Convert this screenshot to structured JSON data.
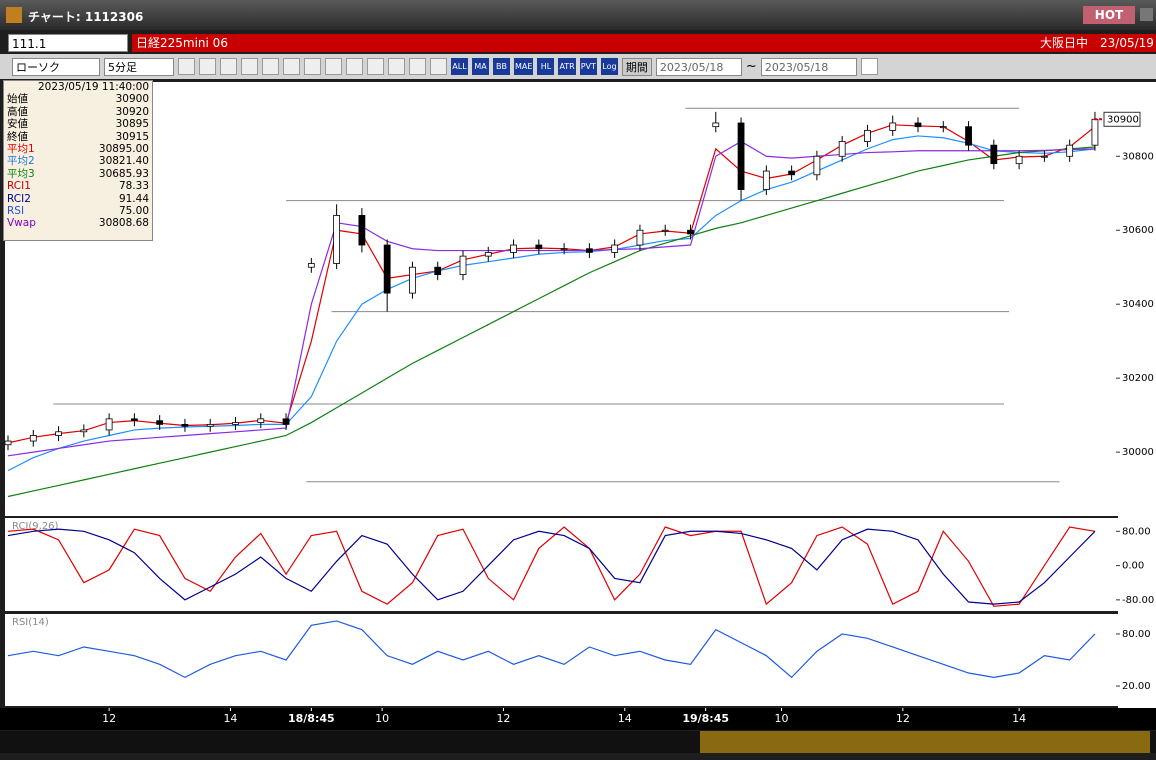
{
  "window": {
    "title": "チャート: 1112306",
    "badge": "HOT"
  },
  "toolbar": {
    "code": "111.1",
    "instrument": "日経225mini 06",
    "session": "大阪日中",
    "date": "23/05/19",
    "chart_kind": "ローソク",
    "interval": "5分足",
    "buttons": [
      "ALL",
      "MA",
      "BB",
      "MAE",
      "HL",
      "ATR",
      "PVT",
      "Log"
    ],
    "period": "期間",
    "from": "2023/05/18",
    "separator": "~",
    "to": "2023/05/18"
  },
  "info_panel": {
    "datetime": "2023/05/19 11:40:00",
    "rows": [
      {
        "label": "始値",
        "value": "30900",
        "color": "#000000"
      },
      {
        "label": "高値",
        "value": "30920",
        "color": "#000000"
      },
      {
        "label": "安値",
        "value": "30895",
        "color": "#000000"
      },
      {
        "label": "終値",
        "value": "30915",
        "color": "#000000"
      },
      {
        "label": "平均1",
        "value": "30895.00",
        "color": "#e00000"
      },
      {
        "label": "平均2",
        "value": "30821.40",
        "color": "#1e78e0"
      },
      {
        "label": "平均3",
        "value": "30685.93",
        "color": "#108010"
      },
      {
        "label": "RCI1",
        "value": "78.33",
        "color": "#c00000"
      },
      {
        "label": "RCI2",
        "value": "91.44",
        "color": "#000090"
      },
      {
        "label": "RSI",
        "value": "75.00",
        "color": "#1e50e0"
      },
      {
        "label": "Vwap",
        "value": "30808.68",
        "color": "#8000c0"
      }
    ]
  },
  "chart_data": [
    {
      "type": "candlestick",
      "x": [
        0,
        5,
        10,
        15,
        20,
        25,
        30,
        35,
        40,
        45,
        50,
        55,
        60,
        65,
        70,
        75,
        80,
        85,
        90,
        95,
        100,
        105,
        110,
        115,
        120,
        125,
        130,
        135,
        140,
        145,
        150,
        155,
        160,
        165,
        170,
        175,
        180,
        185,
        190,
        195,
        200,
        205,
        210,
        215
      ],
      "open": [
        30020,
        30030,
        30045,
        30055,
        30060,
        30090,
        30085,
        30075,
        30070,
        30075,
        30080,
        30090,
        30500,
        30510,
        30640,
        30560,
        30430,
        30500,
        30480,
        30530,
        30540,
        30560,
        30550,
        30550,
        30540,
        30560,
        30600,
        30600,
        30880,
        30890,
        30710,
        30760,
        30750,
        30800,
        30840,
        30870,
        30890,
        30880,
        30880,
        30830,
        30780,
        30800,
        30800,
        30830
      ],
      "high": [
        30045,
        30060,
        30070,
        30075,
        30105,
        30105,
        30100,
        30090,
        30090,
        30095,
        30105,
        30105,
        30525,
        30670,
        30660,
        30575,
        30515,
        30515,
        30545,
        30555,
        30575,
        30575,
        30565,
        30565,
        30575,
        30615,
        30615,
        30615,
        30920,
        30905,
        30775,
        30775,
        30815,
        30855,
        30885,
        30910,
        30905,
        30895,
        30895,
        30845,
        30815,
        30815,
        30845,
        30920
      ],
      "low": [
        30005,
        30015,
        30030,
        30040,
        30045,
        30070,
        30060,
        30055,
        30055,
        30060,
        30065,
        30060,
        30485,
        30495,
        30540,
        30380,
        30415,
        30465,
        30465,
        30515,
        30525,
        30535,
        30535,
        30525,
        30525,
        30545,
        30585,
        30575,
        30865,
        30680,
        30695,
        30735,
        30735,
        30785,
        30825,
        30855,
        30865,
        30865,
        30815,
        30765,
        30765,
        30785,
        30785,
        30815
      ],
      "close": [
        30030,
        30045,
        30055,
        30060,
        30090,
        30085,
        30075,
        30070,
        30075,
        30080,
        30090,
        30075,
        30510,
        30640,
        30560,
        30430,
        30500,
        30480,
        30530,
        30540,
        30560,
        30550,
        30550,
        30540,
        30560,
        30600,
        30600,
        30590,
        30890,
        30710,
        30760,
        30750,
        30800,
        30840,
        30870,
        30890,
        30880,
        30880,
        30830,
        30780,
        30800,
        30800,
        30830,
        30900
      ],
      "series": [
        {
          "color": "#e00000",
          "values": [
            30025,
            30040,
            30050,
            30058,
            30080,
            30085,
            30078,
            30072,
            30074,
            30078,
            30086,
            30078,
            30300,
            30600,
            30590,
            30470,
            30480,
            30490,
            30520,
            30535,
            30550,
            30552,
            30550,
            30545,
            30555,
            30590,
            30598,
            30592,
            30820,
            30760,
            30740,
            30752,
            30790,
            30830,
            30862,
            30885,
            30882,
            30880,
            30840,
            30790,
            30798,
            30800,
            30825,
            30880
          ]
        },
        {
          "color": "#1e90ff",
          "values": [
            29950,
            29985,
            30010,
            30030,
            30045,
            30060,
            30065,
            30068,
            30070,
            30072,
            30075,
            30075,
            30150,
            30300,
            30400,
            30440,
            30470,
            30490,
            30505,
            30515,
            30525,
            30535,
            30540,
            30542,
            30548,
            30560,
            30572,
            30578,
            30640,
            30680,
            30710,
            30730,
            30760,
            30790,
            30820,
            30845,
            30855,
            30850,
            30835,
            30815,
            30810,
            30808,
            30812,
            30820
          ]
        },
        {
          "color": "#108010",
          "values": [
            29880,
            29895,
            29910,
            29925,
            29940,
            29955,
            29970,
            29985,
            30000,
            30015,
            30030,
            30045,
            30080,
            30120,
            30160,
            30200,
            30240,
            30275,
            30310,
            30345,
            30380,
            30415,
            30450,
            30485,
            30515,
            30545,
            30565,
            30585,
            30605,
            30620,
            30640,
            30660,
            30680,
            30700,
            30720,
            30740,
            30760,
            30775,
            30790,
            30800,
            30810,
            30815,
            30820,
            30825
          ]
        },
        {
          "color": "#8a2be2",
          "values": [
            29990,
            30000,
            30010,
            30020,
            30030,
            30035,
            30040,
            30045,
            30050,
            30055,
            30060,
            30065,
            30400,
            30620,
            30610,
            30570,
            30550,
            30545,
            30545,
            30545,
            30545,
            30545,
            30545,
            30545,
            30548,
            30550,
            30555,
            30560,
            30800,
            30840,
            30800,
            30795,
            30800,
            30805,
            30810,
            30812,
            30815,
            30815,
            30815,
            30815,
            30815,
            30816,
            30818,
            30820
          ]
        }
      ],
      "levels": [
        {
          "value": 30930,
          "x": [
            134,
            200
          ]
        },
        {
          "value": 30680,
          "x": [
            55,
            197
          ]
        },
        {
          "value": 30380,
          "x": [
            64,
            198
          ]
        },
        {
          "value": 30130,
          "x": [
            9,
            197
          ]
        },
        {
          "value": 29920,
          "x": [
            59,
            208
          ]
        }
      ],
      "last_price": 30900,
      "xlim": [
        0,
        216
      ],
      "ylim": [
        29830,
        30990
      ],
      "yticks": [
        30000,
        30200,
        30400,
        30600,
        30800
      ]
    },
    {
      "type": "line",
      "title": "RCI(9,26)",
      "x": [
        0,
        5,
        10,
        15,
        20,
        25,
        30,
        35,
        40,
        45,
        50,
        55,
        60,
        65,
        70,
        75,
        80,
        85,
        90,
        95,
        100,
        105,
        110,
        115,
        120,
        125,
        130,
        135,
        140,
        145,
        150,
        155,
        160,
        165,
        170,
        175,
        180,
        185,
        190,
        195,
        200,
        205,
        210,
        215
      ],
      "series": [
        {
          "color": "#e00000",
          "values": [
            80,
            85,
            60,
            -40,
            -10,
            85,
            70,
            -30,
            -60,
            20,
            75,
            -20,
            70,
            80,
            -60,
            -90,
            -40,
            70,
            85,
            -30,
            -80,
            40,
            90,
            40,
            -80,
            -20,
            90,
            70,
            80,
            80,
            -90,
            -40,
            70,
            90,
            50,
            -90,
            -60,
            80,
            10,
            -95,
            -90,
            0,
            90,
            80
          ]
        },
        {
          "color": "#000090",
          "values": [
            70,
            80,
            85,
            80,
            60,
            30,
            -30,
            -80,
            -50,
            -20,
            20,
            -30,
            -60,
            10,
            70,
            50,
            -20,
            -80,
            -60,
            0,
            60,
            80,
            70,
            40,
            -30,
            -40,
            70,
            80,
            80,
            75,
            60,
            40,
            -10,
            60,
            85,
            80,
            60,
            -20,
            -85,
            -90,
            -85,
            -40,
            20,
            80
          ]
        }
      ],
      "xlim": [
        0,
        216
      ],
      "ylim": [
        -106,
        111
      ],
      "yticks": [
        {
          "value": 80,
          "label": "80.00"
        },
        {
          "value": 0,
          "label": "0.00"
        },
        {
          "value": -80,
          "label": "-80.00"
        }
      ]
    },
    {
      "type": "line",
      "title": "RSI(14)",
      "x": [
        0,
        5,
        10,
        15,
        20,
        25,
        30,
        35,
        40,
        45,
        50,
        55,
        60,
        65,
        70,
        75,
        80,
        85,
        90,
        95,
        100,
        105,
        110,
        115,
        120,
        125,
        130,
        135,
        140,
        145,
        150,
        155,
        160,
        165,
        170,
        175,
        180,
        185,
        190,
        195,
        200,
        205,
        210,
        215
      ],
      "series": [
        {
          "color": "#1e5ae0",
          "values": [
            55,
            60,
            55,
            65,
            60,
            55,
            45,
            30,
            45,
            55,
            60,
            50,
            90,
            95,
            85,
            55,
            45,
            60,
            50,
            60,
            45,
            55,
            45,
            65,
            55,
            60,
            50,
            45,
            85,
            70,
            55,
            30,
            60,
            80,
            75,
            65,
            55,
            45,
            35,
            30,
            35,
            55,
            50,
            80
          ]
        }
      ],
      "xlim": [
        0,
        216
      ],
      "ylim": [
        -3,
        103
      ],
      "yticks": [
        {
          "value": 80,
          "label": "80.00"
        },
        {
          "value": 20,
          "label": "20.00"
        }
      ],
      "xticks": [
        {
          "value": 20,
          "label": "12"
        },
        {
          "value": 44,
          "label": "14"
        },
        {
          "value": 60,
          "label": "18/8:45"
        },
        {
          "value": 74,
          "label": "10"
        },
        {
          "value": 98,
          "label": "12"
        },
        {
          "value": 122,
          "label": "14"
        },
        {
          "value": 138,
          "label": "19/8:45"
        },
        {
          "value": 153,
          "label": "10"
        },
        {
          "value": 177,
          "label": "12"
        },
        {
          "value": 200,
          "label": "14"
        }
      ]
    }
  ]
}
